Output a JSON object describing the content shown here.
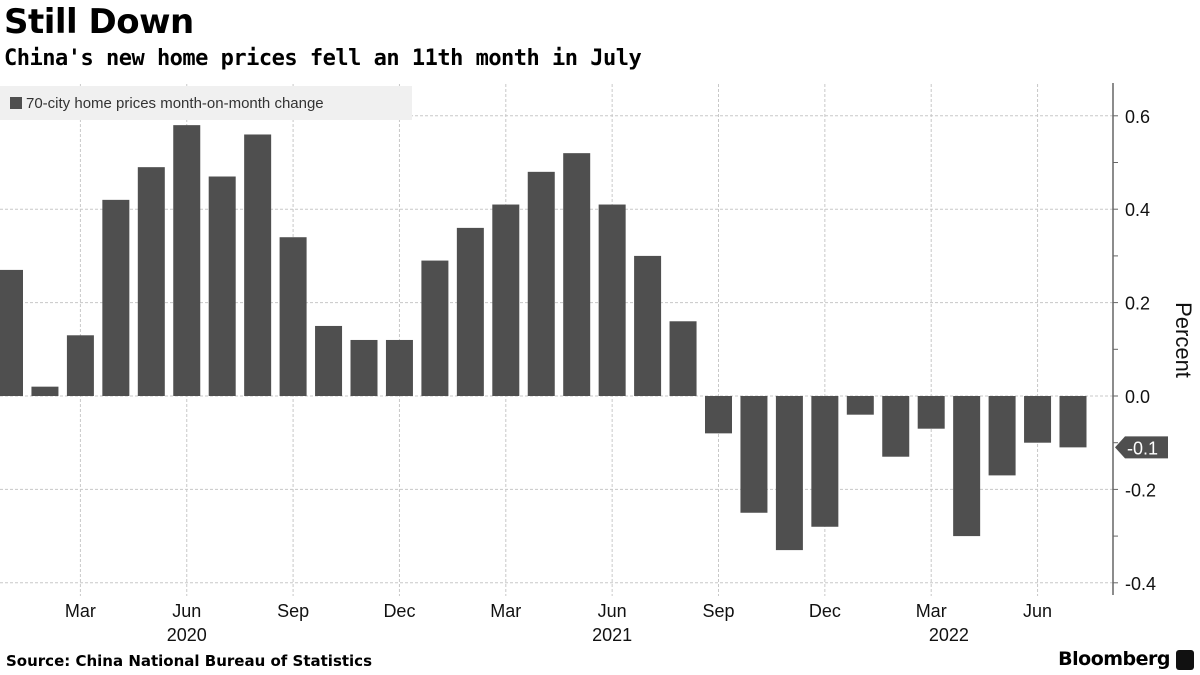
{
  "header": {
    "title": "Still Down",
    "subtitle": "China's new home prices fell an 11th month in July"
  },
  "footer": {
    "source": "Source: China National Bureau of Statistics",
    "brand": "Bloomberg"
  },
  "chart_data": {
    "type": "bar",
    "title": "Still Down",
    "subtitle": "China's new home prices fell an 11th month in July",
    "legend": [
      "70-city home prices month-on-month change"
    ],
    "legend_position": "top-left",
    "xlabel": "",
    "ylabel": "Percent",
    "ylim": [
      -0.4,
      0.65
    ],
    "yticks": [
      "0.6",
      "0.4",
      "0.2",
      "0.0",
      "-0.2",
      "-0.4"
    ],
    "ytick_values": [
      0.6,
      0.4,
      0.2,
      0.0,
      -0.2,
      -0.4
    ],
    "grid": true,
    "x_tick_labels": [
      {
        "label": "Mar",
        "index": 2
      },
      {
        "label": "Jun",
        "index": 5
      },
      {
        "label": "Sep",
        "index": 8
      },
      {
        "label": "Dec",
        "index": 11
      },
      {
        "label": "Mar",
        "index": 14
      },
      {
        "label": "Jun",
        "index": 17
      },
      {
        "label": "Sep",
        "index": 20
      },
      {
        "label": "Dec",
        "index": 23
      },
      {
        "label": "Mar",
        "index": 26
      },
      {
        "label": "Jun",
        "index": 29
      }
    ],
    "year_labels": [
      {
        "label": "2020",
        "index": 5
      },
      {
        "label": "2021",
        "index": 17
      },
      {
        "label": "2022",
        "index": 26.5
      }
    ],
    "last_value_label": "-0.1",
    "categories": [
      "2020-01",
      "2020-02",
      "2020-03",
      "2020-04",
      "2020-05",
      "2020-06",
      "2020-07",
      "2020-08",
      "2020-09",
      "2020-10",
      "2020-11",
      "2020-12",
      "2021-01",
      "2021-02",
      "2021-03",
      "2021-04",
      "2021-05",
      "2021-06",
      "2021-07",
      "2021-08",
      "2021-09",
      "2021-10",
      "2021-11",
      "2021-12",
      "2022-01",
      "2022-02",
      "2022-03",
      "2022-04",
      "2022-05",
      "2022-06",
      "2022-07"
    ],
    "series": [
      {
        "name": "70-city home prices month-on-month change",
        "color": "#4f4f4f",
        "values": [
          0.27,
          0.02,
          0.13,
          0.42,
          0.49,
          0.58,
          0.47,
          0.56,
          0.34,
          0.15,
          0.12,
          0.12,
          0.29,
          0.36,
          0.41,
          0.48,
          0.52,
          0.41,
          0.3,
          0.16,
          -0.08,
          -0.25,
          -0.33,
          -0.28,
          -0.04,
          -0.13,
          -0.07,
          -0.3,
          -0.17,
          -0.1,
          -0.11
        ]
      }
    ]
  }
}
